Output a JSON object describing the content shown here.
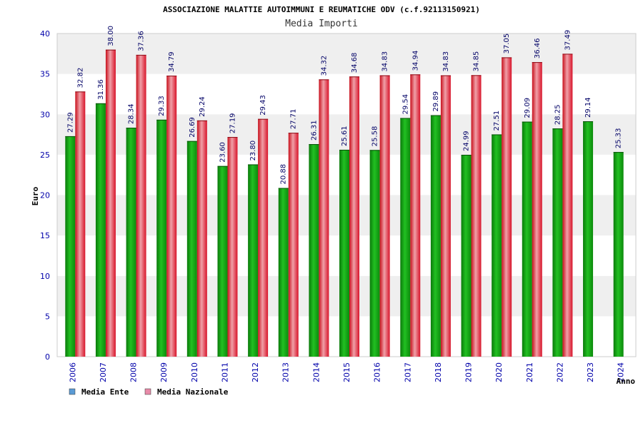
{
  "chart_data": {
    "type": "bar",
    "title": "ASSOCIAZIONE MALATTIE AUTOIMMUNI E REUMATICHE ODV (c.f.92113150921)",
    "subtitle": "Media Importi",
    "xlabel": "Anno",
    "ylabel": "Euro",
    "ylim": [
      0,
      40
    ],
    "yticks": [
      0,
      5,
      10,
      15,
      20,
      25,
      30,
      35,
      40
    ],
    "grid": "horizontal bands",
    "legend_position": "bottom-left",
    "categories": [
      "2006",
      "2007",
      "2008",
      "2009",
      "2010",
      "2011",
      "2012",
      "2013",
      "2014",
      "2015",
      "2016",
      "2017",
      "2018",
      "2019",
      "2020",
      "2021",
      "2022",
      "2023",
      "2024"
    ],
    "series": [
      {
        "name": "Media Ente",
        "color": "#1aa01a",
        "legend_color": "#5b9bd5",
        "values": [
          27.29,
          31.36,
          28.34,
          29.33,
          26.69,
          23.6,
          23.8,
          20.88,
          26.31,
          25.61,
          25.58,
          29.54,
          29.89,
          24.99,
          27.51,
          29.09,
          28.25,
          29.14,
          25.33
        ],
        "labels": [
          "27.29",
          "31.36",
          "28.34",
          "29.33",
          "26.69",
          "23.60",
          "23.80",
          "20.88",
          "26.31",
          "25.61",
          "25.58",
          "29.54",
          "29.89",
          "24.99",
          "27.51",
          "29.09",
          "28.25",
          "29.14",
          "25.33"
        ]
      },
      {
        "name": "Media Nazionale",
        "color": "#e01a2a",
        "legend_color": "#e88aa8",
        "values": [
          32.82,
          38.0,
          37.36,
          34.79,
          29.24,
          27.19,
          29.43,
          27.71,
          34.32,
          34.68,
          34.83,
          34.94,
          34.83,
          34.85,
          37.05,
          36.46,
          37.49,
          null,
          null
        ],
        "labels": [
          "32.82",
          "38.00",
          "37.36",
          "34.79",
          "29.24",
          "27.19",
          "29.43",
          "27.71",
          "34.32",
          "34.68",
          "34.83",
          "34.94",
          "34.83",
          "34.85",
          "37.05",
          "36.46",
          "37.49",
          "",
          ""
        ]
      }
    ]
  }
}
